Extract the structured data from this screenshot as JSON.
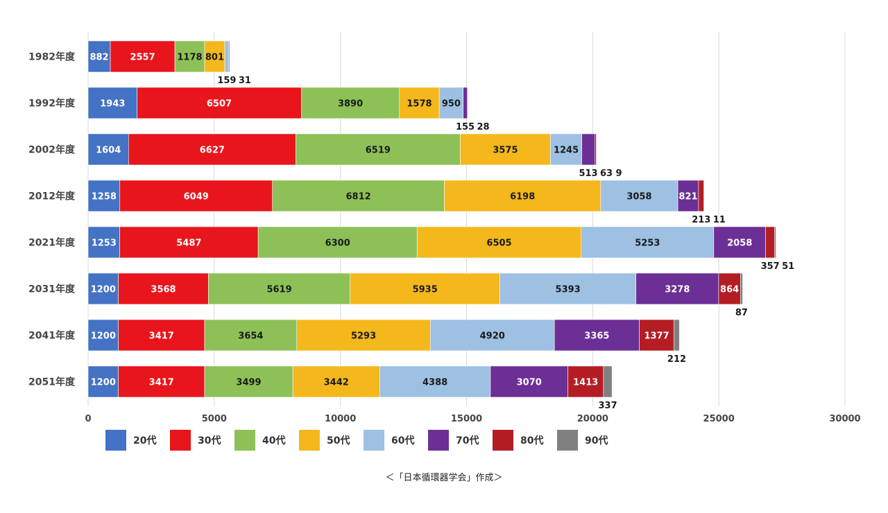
{
  "chart_data": {
    "type": "bar",
    "orientation": "horizontal",
    "stacked": true,
    "categories": [
      "1982年度",
      "1992年度",
      "2002年度",
      "2012年度",
      "2021年度",
      "2031年度",
      "2041年度",
      "2051年度"
    ],
    "series": [
      {
        "name": "20代",
        "color": "#4472c4",
        "values": [
          882,
          1943,
          1604,
          1258,
          1253,
          1200,
          1200,
          1200
        ]
      },
      {
        "name": "30代",
        "color": "#e8151c",
        "values": [
          2557,
          6507,
          6627,
          6049,
          5487,
          3568,
          3417,
          3417
        ]
      },
      {
        "name": "40代",
        "color": "#8dc157",
        "values": [
          1178,
          3890,
          6519,
          6812,
          6300,
          5619,
          3654,
          3499
        ]
      },
      {
        "name": "50代",
        "color": "#f4b81d",
        "values": [
          801,
          1578,
          3575,
          6198,
          6505,
          5935,
          5293,
          3442
        ]
      },
      {
        "name": "60代",
        "color": "#9dc0e3",
        "values": [
          159,
          950,
          1245,
          3058,
          5253,
          5393,
          4920,
          4388
        ]
      },
      {
        "name": "70代",
        "color": "#6b2f95",
        "values": [
          31,
          155,
          513,
          821,
          2058,
          3278,
          3365,
          3070
        ]
      },
      {
        "name": "80代",
        "color": "#b51d24",
        "values": [
          0,
          28,
          63,
          213,
          357,
          864,
          1377,
          1413
        ]
      },
      {
        "name": "90代",
        "color": "#808080",
        "values": [
          0,
          0,
          9,
          11,
          51,
          87,
          212,
          337
        ]
      }
    ],
    "xlim": [
      0,
      30000
    ],
    "xticks": [
      "0",
      "5000",
      "10000",
      "15000",
      "20000",
      "25000",
      "30000"
    ],
    "grid": "vertical",
    "legend": "bottom",
    "title": "",
    "xlabel": "",
    "ylabel": ""
  },
  "caption": "＜「日本循環器学会」作成＞"
}
